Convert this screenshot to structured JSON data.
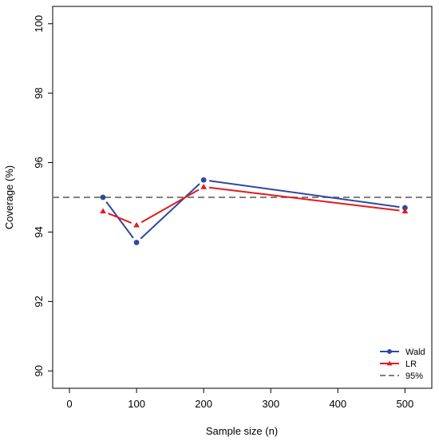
{
  "chart_data": {
    "type": "line",
    "xlabel": "Sample size (n)",
    "ylabel": "Coverage (%)",
    "xlim": [
      -25,
      540
    ],
    "ylim": [
      89.5,
      100.5
    ],
    "x_ticks": [
      0,
      100,
      200,
      300,
      400,
      500
    ],
    "y_ticks": [
      90,
      92,
      94,
      96,
      98,
      100
    ],
    "x_tick_labels": [
      "0",
      "100",
      "200",
      "300",
      "400",
      "500"
    ],
    "y_tick_labels": [
      "90",
      "92",
      "94",
      "96",
      "98",
      "100"
    ],
    "grid": false,
    "legend_position": "bottom-right",
    "series": [
      {
        "name": "Wald",
        "color": "#2E4A9E",
        "marker": "circle",
        "x": [
          50,
          100,
          200,
          500
        ],
        "y": [
          95.0,
          93.7,
          95.5,
          94.7
        ]
      },
      {
        "name": "LR",
        "color": "#E41A1C",
        "marker": "triangle",
        "x": [
          50,
          100,
          200,
          500
        ],
        "y": [
          94.6,
          94.2,
          95.3,
          94.6
        ]
      }
    ],
    "reference_lines": [
      {
        "name": "95%",
        "y": 95,
        "color": "#808080",
        "style": "dashed"
      }
    ]
  }
}
